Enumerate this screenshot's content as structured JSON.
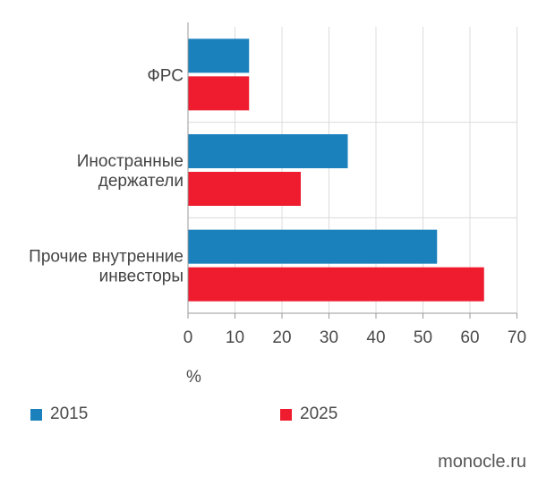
{
  "chart_data": {
    "type": "bar",
    "orientation": "horizontal",
    "categories": [
      "ФРС",
      "Иностранные держатели",
      "Прочие внутренние инвесторы"
    ],
    "category_lines": [
      [
        "ФРС"
      ],
      [
        "Иностранные",
        "держатели"
      ],
      [
        "Прочие внутренние",
        "инвесторы"
      ]
    ],
    "series": [
      {
        "name": "2015",
        "color": "#1a81bd",
        "values": [
          13,
          34,
          53
        ]
      },
      {
        "name": "2025",
        "color": "#ee1c2e",
        "values": [
          13,
          24,
          63
        ]
      }
    ],
    "xlim": [
      0,
      70
    ],
    "xticks": [
      0,
      10,
      20,
      30,
      40,
      50,
      60,
      70
    ],
    "xlabel": "%",
    "grid": true,
    "legend_position": "bottom"
  },
  "legend": {
    "items": [
      {
        "label": "2015",
        "color": "#1a81bd"
      },
      {
        "label": "2025",
        "color": "#ee1c2e"
      }
    ]
  },
  "footer": {
    "source": "monocle.ru"
  }
}
